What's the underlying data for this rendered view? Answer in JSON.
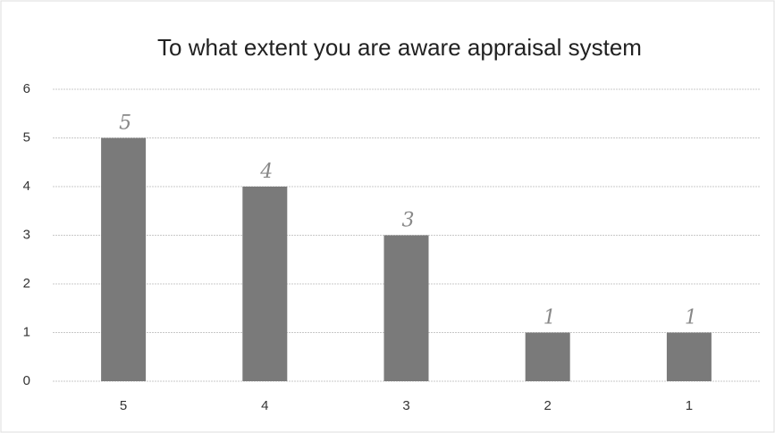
{
  "chart_data": {
    "type": "bar",
    "title": "To what extent you are aware appraisal system",
    "categories": [
      "5",
      "4",
      "3",
      "2",
      "1"
    ],
    "values": [
      5,
      4,
      3,
      1,
      1
    ],
    "color": "#7a7a7a",
    "ylim": [
      0,
      6
    ],
    "yticks": [
      0,
      1,
      2,
      3,
      4,
      5,
      6
    ],
    "grid": true
  }
}
